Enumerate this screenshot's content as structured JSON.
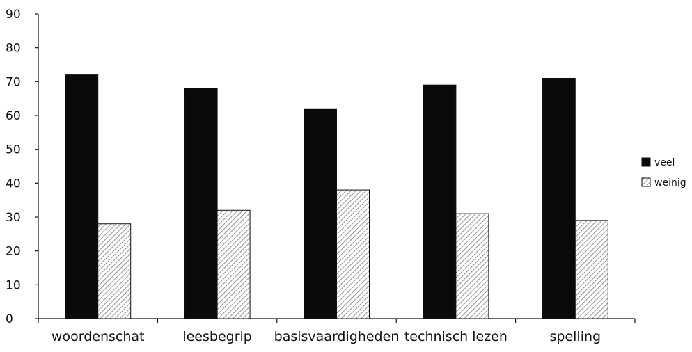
{
  "chart_data": {
    "type": "bar",
    "title": "",
    "xlabel": "",
    "ylabel": "",
    "categories": [
      "woordenschat",
      "leesbegrip",
      "basisvaardigheden",
      "technisch lezen",
      "spelling"
    ],
    "series": [
      {
        "name": "veel",
        "values": [
          72,
          68,
          62,
          69,
          71
        ],
        "fill": "solid",
        "color": "#0a0a0a"
      },
      {
        "name": "weinig",
        "values": [
          28,
          32,
          38,
          31,
          29
        ],
        "fill": "diagonal-hatch",
        "color": "#ffffff"
      }
    ],
    "ylim": [
      0,
      90
    ],
    "yticks": [
      "0",
      "10",
      "20",
      "30",
      "40",
      "50",
      "60",
      "70",
      "80",
      "90"
    ],
    "grid": false,
    "legend": {
      "position": "right",
      "entries": [
        "veel",
        "weinig"
      ]
    }
  }
}
